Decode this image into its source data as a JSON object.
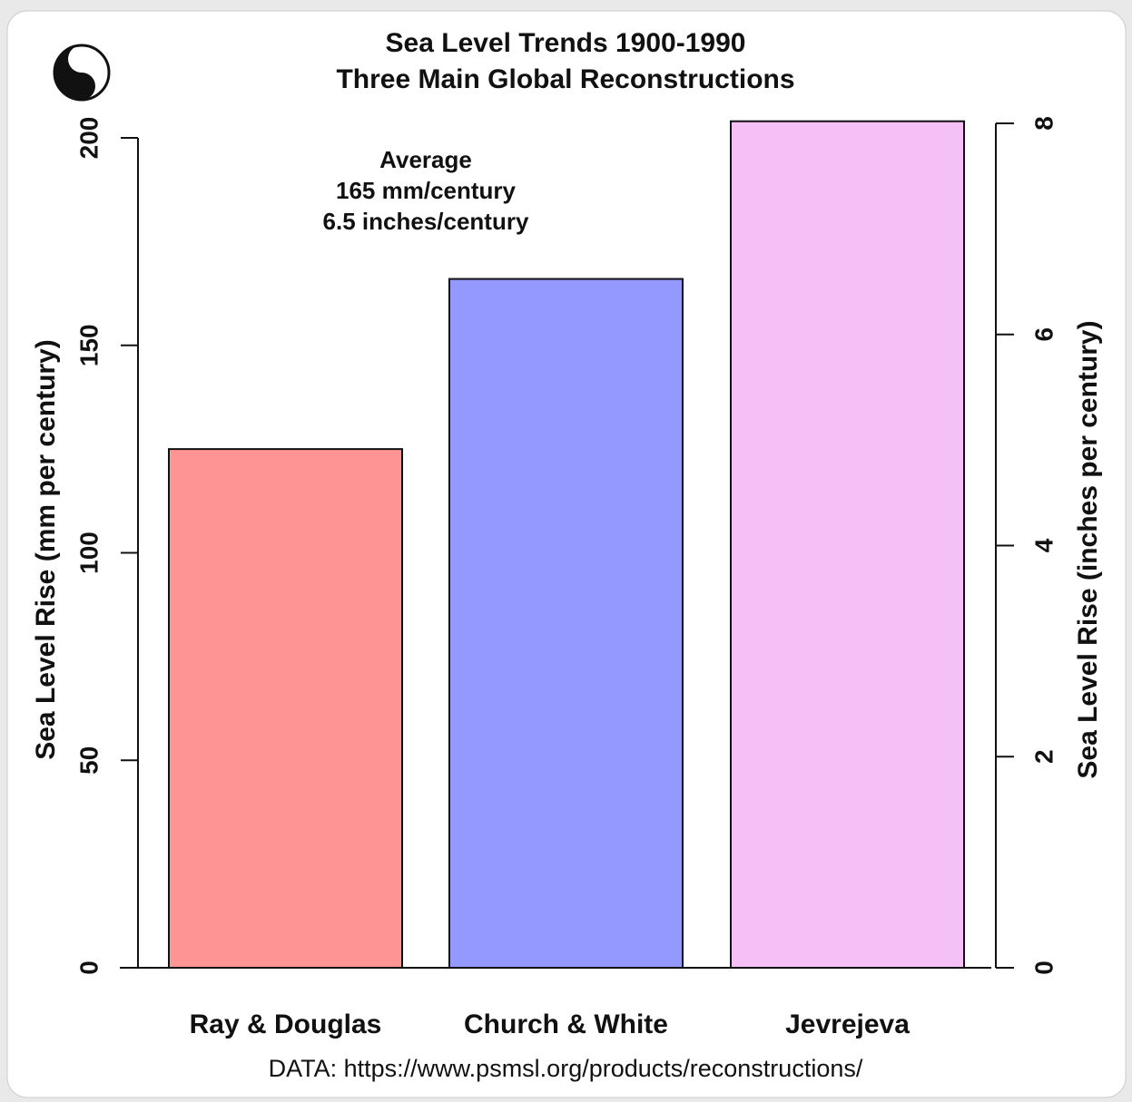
{
  "chart_data": {
    "type": "bar",
    "title": "Sea Level Trends 1900-1990",
    "subtitle": "Three Main Global Reconstructions",
    "annotation": [
      "Average",
      "165 mm/century",
      "6.5 inches/century"
    ],
    "source": "DATA: https://www.psmsl.org/products/reconstructions/",
    "y_label": "Sea Level Rise (mm per century)",
    "y2_label": "Sea Level Rise (inches per century)",
    "categories": [
      "Ray & Douglas",
      "Church & White",
      "Jevrejeva"
    ],
    "values": [
      125,
      166,
      204
    ],
    "colors": [
      "#ff9494",
      "#9499ff",
      "#f5c0f5"
    ],
    "ylim": [
      0,
      200
    ],
    "yticks": [
      0,
      50,
      100,
      150,
      200
    ],
    "y2lim": [
      0,
      8
    ],
    "y2ticks": [
      0,
      2,
      4,
      6,
      8
    ]
  }
}
